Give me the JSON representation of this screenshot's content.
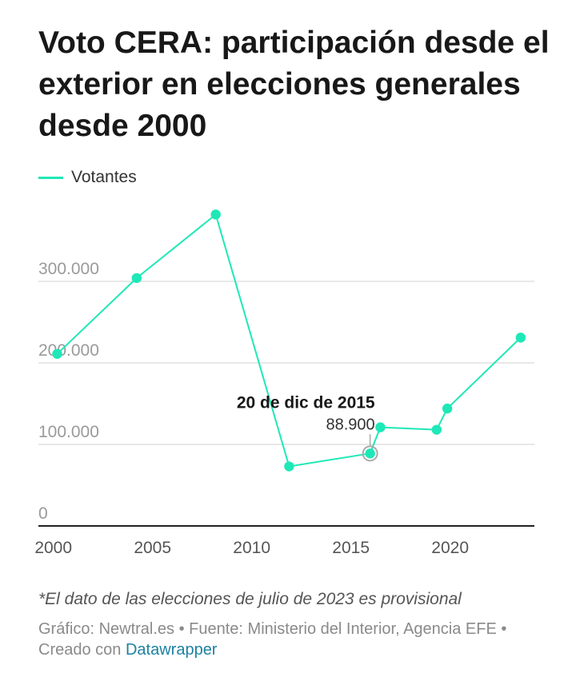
{
  "chart_data": {
    "type": "line",
    "title": "Voto CERA: participación desde el exterior en elecciones generales desde 2000",
    "legend_position": "top-left",
    "series": [
      {
        "name": "Votantes",
        "color": "#1ee8b7",
        "points": [
          {
            "date": "2000-03-12",
            "value": 211000
          },
          {
            "date": "2004-03-14",
            "value": 304000
          },
          {
            "date": "2008-03-09",
            "value": 382000
          },
          {
            "date": "2011-11-20",
            "value": 73000
          },
          {
            "date": "2015-12-20",
            "value": 88900
          },
          {
            "date": "2016-06-26",
            "value": 121000
          },
          {
            "date": "2019-04-28",
            "value": 118000
          },
          {
            "date": "2019-11-10",
            "value": 144000
          },
          {
            "date": "2023-07-23",
            "value": 231000
          }
        ]
      }
    ],
    "y_ticks": [
      {
        "value": 0,
        "label": "0"
      },
      {
        "value": 100000,
        "label": "100.000"
      },
      {
        "value": 200000,
        "label": "200.000"
      },
      {
        "value": 300000,
        "label": "300.000"
      }
    ],
    "x_ticks": [
      {
        "year": 2000,
        "label": "2000"
      },
      {
        "year": 2005,
        "label": "2005"
      },
      {
        "year": 2010,
        "label": "2010"
      },
      {
        "year": 2015,
        "label": "2015"
      },
      {
        "year": 2020,
        "label": "2020"
      }
    ],
    "x_range": [
      "1999-04-01",
      "2024-04-01"
    ],
    "y_range": [
      0,
      400000
    ],
    "grid": true,
    "annotation": {
      "point_index": 4,
      "title": "20 de dic de 2015",
      "value_label": "88.900"
    }
  },
  "footnote": "*El dato de las elecciones de julio de 2023 es provisional",
  "credits": {
    "text": "Gráfico: Newtral.es • Fuente: Ministerio del Interior, Agencia EFE • Creado con ",
    "link": "Datawrapper"
  }
}
